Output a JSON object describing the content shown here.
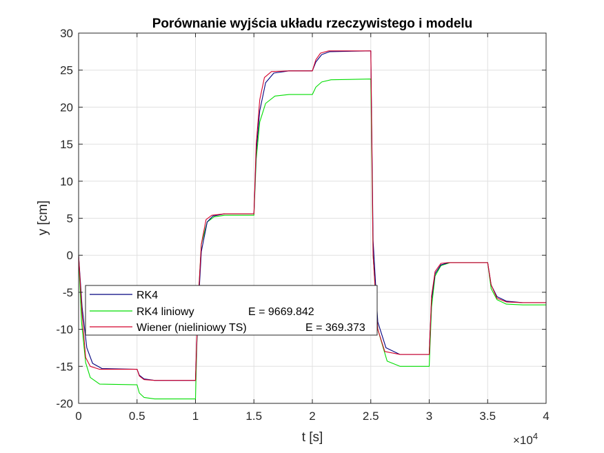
{
  "chart_data": {
    "type": "line",
    "title": "Porównanie wyjścia układu rzeczywistego i modelu",
    "xlabel": "t [s]",
    "ylabel": "y [cm]",
    "xlim": [
      0,
      40000
    ],
    "ylim": [
      -20,
      30
    ],
    "x_ticks": [
      0,
      5000,
      10000,
      15000,
      20000,
      25000,
      30000,
      35000,
      40000
    ],
    "x_tick_labels": [
      "0",
      "0.5",
      "1",
      "1.5",
      "2",
      "2.5",
      "3",
      "3.5",
      "4"
    ],
    "x_exponent_label": "×10",
    "x_exponent_power": "4",
    "y_ticks": [
      -20,
      -15,
      -10,
      -5,
      0,
      5,
      10,
      15,
      20,
      25,
      30
    ],
    "y_tick_labels": [
      "-20",
      "-15",
      "-10",
      "-5",
      "0",
      "5",
      "10",
      "15",
      "20",
      "25",
      "30"
    ],
    "grid": true,
    "legend_position": "center-left",
    "series": [
      {
        "name": "RK4",
        "error_label": "",
        "color": "#00007f",
        "x": [
          0,
          300,
          700,
          1200,
          2000,
          5000,
          5200,
          5600,
          6500,
          10000,
          10200,
          10500,
          11000,
          11500,
          12500,
          15000,
          15200,
          15500,
          16000,
          16700,
          18000,
          20000,
          20300,
          20800,
          21500,
          25000,
          25200,
          25600,
          26300,
          27500,
          30000,
          30200,
          30500,
          31000,
          31700,
          33000,
          35000,
          35300,
          35800,
          36600,
          38000,
          40000
        ],
        "values": [
          0,
          -7,
          -12.5,
          -14.6,
          -15.3,
          -15.4,
          -16.2,
          -16.7,
          -16.9,
          -16.9,
          -8,
          0.5,
          4.5,
          5.3,
          5.6,
          5.6,
          14,
          19.5,
          23.3,
          24.6,
          24.9,
          24.9,
          26.1,
          27.1,
          27.5,
          27.6,
          2,
          -9,
          -12.5,
          -13.4,
          -13.4,
          -6,
          -2.5,
          -1.3,
          -1.0,
          -1.0,
          -1.0,
          -4,
          -5.6,
          -6.2,
          -6.4,
          -6.4
        ]
      },
      {
        "name": "RK4 liniowy",
        "error_label": "E = 9669.842",
        "color": "#00dd00",
        "x": [
          0,
          250,
          600,
          1000,
          1800,
          5000,
          5200,
          5600,
          6500,
          10000,
          10200,
          10500,
          11000,
          11600,
          12500,
          15000,
          15200,
          15500,
          16000,
          16800,
          18000,
          20000,
          20300,
          20800,
          21600,
          25000,
          25200,
          25600,
          26400,
          27500,
          30000,
          30200,
          30500,
          31000,
          31800,
          33000,
          35000,
          35300,
          35800,
          36600,
          38000,
          40000
        ],
        "values": [
          0,
          -9,
          -14.5,
          -16.5,
          -17.4,
          -17.5,
          -18.6,
          -19.2,
          -19.4,
          -19.4,
          -7,
          1.5,
          4.5,
          5.2,
          5.4,
          5.4,
          13,
          18,
          20.5,
          21.5,
          21.7,
          21.7,
          22.7,
          23.4,
          23.7,
          23.8,
          0,
          -10,
          -14.3,
          -15.0,
          -15.0,
          -7,
          -2.8,
          -1.4,
          -1.0,
          -1.0,
          -1.0,
          -4.5,
          -6,
          -6.6,
          -6.7,
          -6.7
        ]
      },
      {
        "name": "Wiener (nieliniowy TS)",
        "error_label": "E = 369.373",
        "color": "#d4002a",
        "x": [
          0,
          300,
          600,
          1000,
          1800,
          5000,
          5200,
          5600,
          6500,
          10000,
          10200,
          10500,
          10900,
          11400,
          12500,
          15000,
          15200,
          15500,
          15900,
          16500,
          18000,
          20000,
          20300,
          20700,
          21400,
          25000,
          25200,
          25600,
          26200,
          27500,
          30000,
          30200,
          30500,
          31000,
          31600,
          33000,
          35000,
          35300,
          35800,
          36600,
          38000,
          40000
        ],
        "values": [
          0,
          -8,
          -13.8,
          -15.0,
          -15.4,
          -15.4,
          -16.3,
          -16.8,
          -16.9,
          -16.9,
          -7,
          1.5,
          4.8,
          5.4,
          5.6,
          5.6,
          15,
          21,
          24.0,
          24.8,
          24.9,
          24.9,
          26.4,
          27.3,
          27.6,
          27.6,
          0,
          -10,
          -13.0,
          -13.4,
          -13.4,
          -5.5,
          -2.2,
          -1.1,
          -1.0,
          -1.0,
          -1.0,
          -4,
          -5.8,
          -6.3,
          -6.4,
          -6.4
        ]
      }
    ]
  }
}
